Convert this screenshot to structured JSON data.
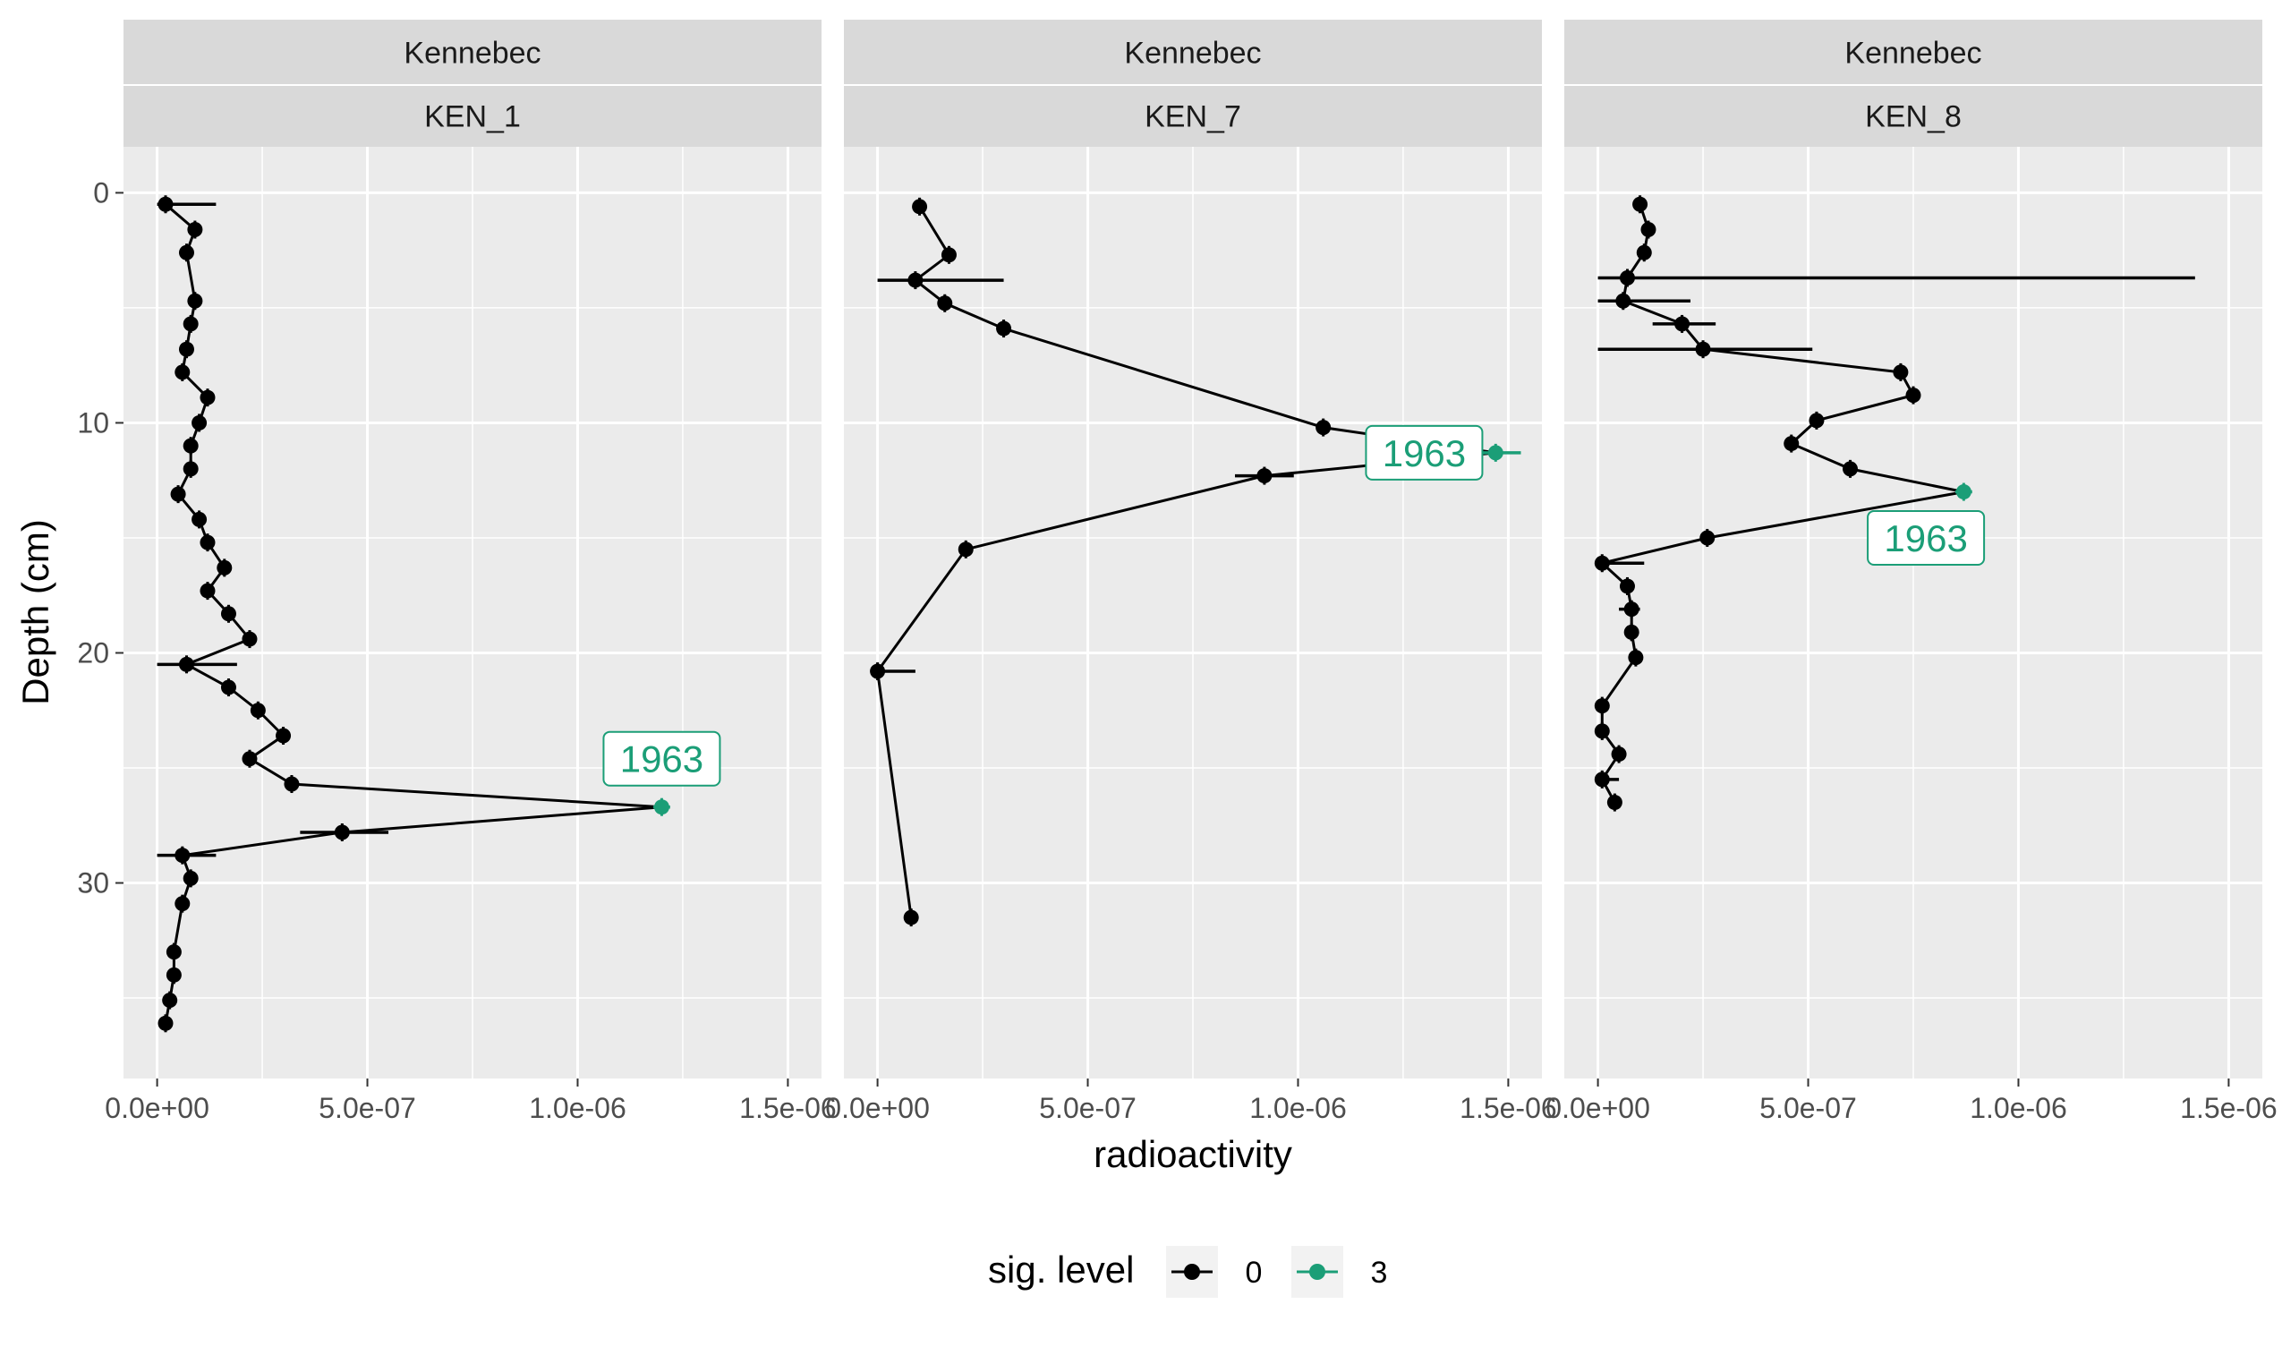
{
  "chart_data": {
    "type": "scatter",
    "xlabel": "radioactivity",
    "ylabel": "Depth (cm)",
    "xlim": [
      -8e-08,
      1.58e-06
    ],
    "ylim": [
      -2,
      38.5
    ],
    "y_reversed": true,
    "x_ticks": [
      0,
      5e-07,
      1e-06,
      1.5e-06
    ],
    "x_tick_labels": [
      "0.0e+00",
      "5.0e-07",
      "1.0e-06",
      "1.5e-06"
    ],
    "y_ticks": [
      0,
      10,
      20,
      30
    ],
    "y_tick_labels": [
      "0",
      "10",
      "20",
      "30"
    ],
    "grid": true,
    "legend": {
      "title": "sig. level",
      "position": "bottom",
      "entries": [
        {
          "label": "0",
          "color": "#000000"
        },
        {
          "label": "3",
          "color": "#1b9e77"
        }
      ]
    },
    "colors": {
      "level_0": "#000000",
      "level_3": "#1b9e77",
      "panel_bg": "#ebebeb",
      "strip_bg": "#d9d9d9"
    },
    "panels": [
      {
        "strip_top": "Kennebec",
        "strip_bottom": "KEN_1",
        "annotation": {
          "text": "1963",
          "x": 1.2e-06,
          "y": 24.6
        },
        "points": [
          {
            "x": 2e-08,
            "y": 0.5,
            "xerr": [
              0.0,
              1.4e-07
            ],
            "sig": 0
          },
          {
            "x": 9e-08,
            "y": 1.6,
            "xerr": [
              8e-08,
              1e-07
            ],
            "sig": 0
          },
          {
            "x": 7e-08,
            "y": 2.6,
            "xerr": [
              6e-08,
              8e-08
            ],
            "sig": 0
          },
          {
            "x": 9e-08,
            "y": 4.7,
            "xerr": [
              8e-08,
              1e-07
            ],
            "sig": 0
          },
          {
            "x": 8e-08,
            "y": 5.7,
            "xerr": [
              7e-08,
              9e-08
            ],
            "sig": 0
          },
          {
            "x": 7e-08,
            "y": 6.8,
            "xerr": [
              6e-08,
              8e-08
            ],
            "sig": 0
          },
          {
            "x": 6e-08,
            "y": 7.8,
            "xerr": [
              5e-08,
              7e-08
            ],
            "sig": 0
          },
          {
            "x": 1.2e-07,
            "y": 8.9,
            "xerr": [
              1.1e-07,
              1.3e-07
            ],
            "sig": 0
          },
          {
            "x": 1e-07,
            "y": 10.0,
            "xerr": [
              9e-08,
              1.1e-07
            ],
            "sig": 0
          },
          {
            "x": 8e-08,
            "y": 11.0,
            "xerr": [
              7e-08,
              9e-08
            ],
            "sig": 0
          },
          {
            "x": 8e-08,
            "y": 12.0,
            "xerr": [
              7e-08,
              9e-08
            ],
            "sig": 0
          },
          {
            "x": 5e-08,
            "y": 13.1,
            "xerr": [
              4e-08,
              6e-08
            ],
            "sig": 0
          },
          {
            "x": 1e-07,
            "y": 14.2,
            "xerr": [
              9e-08,
              1.1e-07
            ],
            "sig": 0
          },
          {
            "x": 1.2e-07,
            "y": 15.2,
            "xerr": [
              1.1e-07,
              1.3e-07
            ],
            "sig": 0
          },
          {
            "x": 1.6e-07,
            "y": 16.3,
            "xerr": [
              1.5e-07,
              1.7e-07
            ],
            "sig": 0
          },
          {
            "x": 1.2e-07,
            "y": 17.3,
            "xerr": [
              1.1e-07,
              1.3e-07
            ],
            "sig": 0
          },
          {
            "x": 1.7e-07,
            "y": 18.3,
            "xerr": [
              1.6e-07,
              1.8e-07
            ],
            "sig": 0
          },
          {
            "x": 2.2e-07,
            "y": 19.4,
            "xerr": [
              2.1e-07,
              2.3e-07
            ],
            "sig": 0
          },
          {
            "x": 7e-08,
            "y": 20.5,
            "xerr": [
              0.0,
              1.9e-07
            ],
            "sig": 0
          },
          {
            "x": 1.7e-07,
            "y": 21.5,
            "xerr": [
              1.6e-07,
              1.8e-07
            ],
            "sig": 0
          },
          {
            "x": 2.4e-07,
            "y": 22.5,
            "xerr": [
              2.3e-07,
              2.5e-07
            ],
            "sig": 0
          },
          {
            "x": 3e-07,
            "y": 23.6,
            "xerr": [
              2.9e-07,
              3.1e-07
            ],
            "sig": 0
          },
          {
            "x": 2.2e-07,
            "y": 24.6,
            "xerr": [
              2.1e-07,
              2.3e-07
            ],
            "sig": 0
          },
          {
            "x": 3.2e-07,
            "y": 25.7,
            "xerr": [
              3.1e-07,
              3.3e-07
            ],
            "sig": 0
          },
          {
            "x": 1.2e-06,
            "y": 26.7,
            "xerr": [
              1.18e-06,
              1.22e-06
            ],
            "sig": 3
          },
          {
            "x": 4.4e-07,
            "y": 27.8,
            "xerr": [
              3.4e-07,
              5.5e-07
            ],
            "sig": 0
          },
          {
            "x": 6e-08,
            "y": 28.8,
            "xerr": [
              0.0,
              1.4e-07
            ],
            "sig": 0
          },
          {
            "x": 8e-08,
            "y": 29.8,
            "xerr": [
              7e-08,
              9e-08
            ],
            "sig": 0
          },
          {
            "x": 6e-08,
            "y": 30.9,
            "xerr": [
              5e-08,
              7e-08
            ],
            "sig": 0
          },
          {
            "x": 4e-08,
            "y": 33.0,
            "xerr": [
              3e-08,
              5e-08
            ],
            "sig": 0
          },
          {
            "x": 4e-08,
            "y": 34.0,
            "xerr": [
              3e-08,
              5e-08
            ],
            "sig": 0
          },
          {
            "x": 3e-08,
            "y": 35.1,
            "xerr": [
              2e-08,
              4e-08
            ],
            "sig": 0
          },
          {
            "x": 2e-08,
            "y": 36.1,
            "xerr": [
              1e-08,
              3e-08
            ],
            "sig": 0
          }
        ]
      },
      {
        "strip_top": "Kennebec",
        "strip_bottom": "KEN_7",
        "annotation": {
          "text": "1963",
          "x": 1.3e-06,
          "y": 11.3
        },
        "points": [
          {
            "x": 1e-07,
            "y": 0.6,
            "xerr": [
              9e-08,
              1.1e-07
            ],
            "sig": 0
          },
          {
            "x": 1.7e-07,
            "y": 2.7,
            "xerr": [
              1.6e-07,
              1.8e-07
            ],
            "sig": 0
          },
          {
            "x": 9e-08,
            "y": 3.8,
            "xerr": [
              0.0,
              3e-07
            ],
            "sig": 0
          },
          {
            "x": 1.6e-07,
            "y": 4.8,
            "xerr": [
              1.5e-07,
              1.7e-07
            ],
            "sig": 0
          },
          {
            "x": 3e-07,
            "y": 5.9,
            "xerr": [
              2.9e-07,
              3.1e-07
            ],
            "sig": 0
          },
          {
            "x": 1.06e-06,
            "y": 10.2,
            "xerr": [
              1.05e-06,
              1.07e-06
            ],
            "sig": 0
          },
          {
            "x": 1.47e-06,
            "y": 11.3,
            "xerr": [
              1.43e-06,
              1.53e-06
            ],
            "sig": 3
          },
          {
            "x": 9.2e-07,
            "y": 12.3,
            "xerr": [
              8.5e-07,
              9.9e-07
            ],
            "sig": 0
          },
          {
            "x": 2.1e-07,
            "y": 15.5,
            "xerr": [
              2e-07,
              2.2e-07
            ],
            "sig": 0
          },
          {
            "x": 0.0,
            "y": 20.8,
            "xerr": [
              0.0,
              9e-08
            ],
            "sig": 0
          },
          {
            "x": 8e-08,
            "y": 31.5,
            "xerr": [
              7e-08,
              9e-08
            ],
            "sig": 0
          }
        ]
      },
      {
        "strip_top": "Kennebec",
        "strip_bottom": "KEN_8",
        "annotation": {
          "text": "1963",
          "x": 7.8e-07,
          "y": 15.0
        },
        "points": [
          {
            "x": 1e-07,
            "y": 0.5,
            "xerr": [
              9e-08,
              1.1e-07
            ],
            "sig": 0
          },
          {
            "x": 1.2e-07,
            "y": 1.6,
            "xerr": [
              1.1e-07,
              1.3e-07
            ],
            "sig": 0
          },
          {
            "x": 1.1e-07,
            "y": 2.6,
            "xerr": [
              1e-07,
              1.2e-07
            ],
            "sig": 0
          },
          {
            "x": 7e-08,
            "y": 3.7,
            "xerr": [
              0.0,
              1.42e-06
            ],
            "sig": 0
          },
          {
            "x": 6e-08,
            "y": 4.7,
            "xerr": [
              0.0,
              2.2e-07
            ],
            "sig": 0
          },
          {
            "x": 2e-07,
            "y": 5.7,
            "xerr": [
              1.3e-07,
              2.8e-07
            ],
            "sig": 0
          },
          {
            "x": 2.5e-07,
            "y": 6.8,
            "xerr": [
              0.0,
              5.1e-07
            ],
            "sig": 0
          },
          {
            "x": 7.2e-07,
            "y": 7.8,
            "xerr": [
              7.1e-07,
              7.3e-07
            ],
            "sig": 0
          },
          {
            "x": 7.5e-07,
            "y": 8.8,
            "xerr": [
              7.4e-07,
              7.6e-07
            ],
            "sig": 0
          },
          {
            "x": 5.2e-07,
            "y": 9.9,
            "xerr": [
              5.1e-07,
              5.3e-07
            ],
            "sig": 0
          },
          {
            "x": 4.6e-07,
            "y": 10.9,
            "xerr": [
              4.5e-07,
              4.7e-07
            ],
            "sig": 0
          },
          {
            "x": 6e-07,
            "y": 12.0,
            "xerr": [
              5.9e-07,
              6.1e-07
            ],
            "sig": 0
          },
          {
            "x": 8.7e-07,
            "y": 13.0,
            "xerr": [
              8.5e-07,
              8.9e-07
            ],
            "sig": 3
          },
          {
            "x": 2.6e-07,
            "y": 15.0,
            "xerr": [
              2.5e-07,
              2.7e-07
            ],
            "sig": 0
          },
          {
            "x": 1e-08,
            "y": 16.1,
            "xerr": [
              0.0,
              1.1e-07
            ],
            "sig": 0
          },
          {
            "x": 7e-08,
            "y": 17.1,
            "xerr": [
              6e-08,
              8e-08
            ],
            "sig": 0
          },
          {
            "x": 8e-08,
            "y": 18.1,
            "xerr": [
              5e-08,
              1e-07
            ],
            "sig": 0
          },
          {
            "x": 8e-08,
            "y": 19.1,
            "xerr": [
              7e-08,
              9e-08
            ],
            "sig": 0
          },
          {
            "x": 9e-08,
            "y": 20.2,
            "xerr": [
              8e-08,
              1e-07
            ],
            "sig": 0
          },
          {
            "x": 1e-08,
            "y": 22.3,
            "xerr": [
              0.0,
              2e-08
            ],
            "sig": 0
          },
          {
            "x": 1e-08,
            "y": 23.4,
            "xerr": [
              0.0,
              2e-08
            ],
            "sig": 0
          },
          {
            "x": 5e-08,
            "y": 24.4,
            "xerr": [
              4e-08,
              6e-08
            ],
            "sig": 0
          },
          {
            "x": 1e-08,
            "y": 25.5,
            "xerr": [
              0.0,
              5e-08
            ],
            "sig": 0
          },
          {
            "x": 4e-08,
            "y": 26.5,
            "xerr": [
              3e-08,
              5e-08
            ],
            "sig": 0
          }
        ]
      }
    ]
  }
}
